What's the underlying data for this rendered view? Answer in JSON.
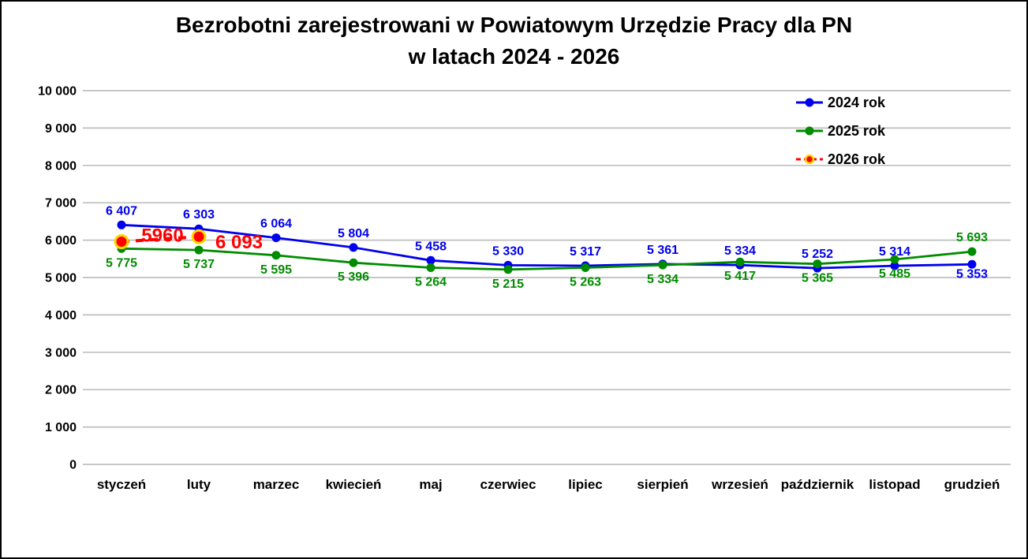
{
  "title": {
    "line1": "Bezrobotni zarejestrowani w Powiatowym Urzędzie Pracy dla PN",
    "line2": "w latach 2024 - 2026"
  },
  "chart_data": {
    "type": "line",
    "title": "Bezrobotni zarejestrowani w Powiatowym Urzędzie Pracy dla PN w latach 2024 - 2026",
    "categories": [
      "styczeń",
      "luty",
      "marzec",
      "kwiecień",
      "maj",
      "czerwiec",
      "lipiec",
      "sierpień",
      "wrzesień",
      "październik",
      "listopad",
      "grudzień"
    ],
    "ylim": [
      0,
      10000
    ],
    "grid": "horizontal",
    "legend_position": "top-right",
    "y_ticks": [
      {
        "value": 10000,
        "label": "10 000"
      },
      {
        "value": 9000,
        "label": "9 000"
      },
      {
        "value": 8000,
        "label": "8 000"
      },
      {
        "value": 7000,
        "label": "7 000"
      },
      {
        "value": 6000,
        "label": "6 000"
      },
      {
        "value": 5000,
        "label": "5 000"
      },
      {
        "value": 4000,
        "label": "4 000"
      },
      {
        "value": 3000,
        "label": "3 000"
      },
      {
        "value": 2000,
        "label": "2 000"
      },
      {
        "value": 1000,
        "label": "1 000"
      },
      {
        "value": 0,
        "label": "0"
      }
    ],
    "style": {
      "grid_color": "#BFBFBF",
      "background": "#FFFFFF",
      "border_color": "#000000"
    },
    "series": [
      {
        "name": "2024 rok",
        "color": "#0000EE",
        "dashed": false,
        "line_width": 2.8,
        "marker_radius": 5.5,
        "label_size": 16,
        "values": [
          6407,
          6303,
          6064,
          5804,
          5458,
          5330,
          5317,
          5361,
          5334,
          5252,
          5314,
          5353
        ],
        "labels": [
          "6 407",
          "6 303",
          "6 064",
          "5 804",
          "5 458",
          "5 330",
          "5 317",
          "5 361",
          "5 334",
          "5 252",
          "5 314",
          "5 353"
        ],
        "label_dx": [
          0,
          0,
          0,
          0,
          0,
          0,
          0,
          0,
          0,
          0,
          0,
          0
        ],
        "label_dy": [
          -13,
          -13,
          -13,
          -13,
          -13,
          -13,
          -13,
          -13,
          -13,
          -13,
          -13,
          17
        ]
      },
      {
        "name": "2025 rok",
        "color": "#008C00",
        "dashed": false,
        "line_width": 2.8,
        "marker_radius": 5.5,
        "label_size": 16,
        "values": [
          5775,
          5737,
          5595,
          5396,
          5264,
          5215,
          5263,
          5334,
          5417,
          5365,
          5485,
          5693
        ],
        "labels": [
          "5 775",
          "5 737",
          "5 595",
          "5 396",
          "5 264",
          "5 215",
          "5 263",
          "5 334",
          "5 417",
          "5 365",
          "5 485",
          "5 693"
        ],
        "label_dx": [
          0,
          0,
          0,
          0,
          0,
          0,
          0,
          0,
          0,
          0,
          0,
          0
        ],
        "label_dy": [
          23,
          23,
          23,
          23,
          23,
          23,
          23,
          23,
          23,
          23,
          23,
          -13
        ]
      },
      {
        "name": "2026 rok",
        "color": "#FF0000",
        "dashed": true,
        "line_width": 4,
        "marker_radius": 8,
        "marker_ring": "#FFD700",
        "label_size": 24,
        "values": [
          5960,
          6093,
          null,
          null,
          null,
          null,
          null,
          null,
          null,
          null,
          null,
          null
        ],
        "labels": [
          "5960",
          "6 093",
          null,
          null,
          null,
          null,
          null,
          null,
          null,
          null,
          null,
          null
        ],
        "label_dx": [
          52,
          51
        ],
        "label_dy": [
          0,
          15
        ]
      }
    ]
  }
}
